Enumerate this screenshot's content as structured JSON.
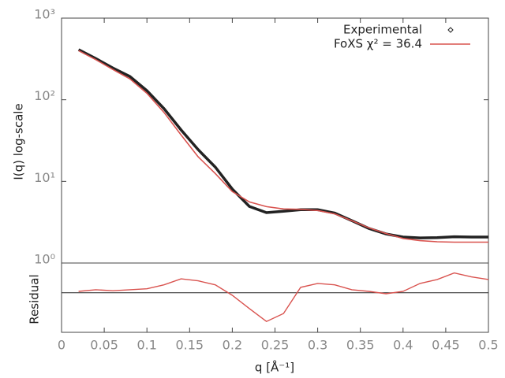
{
  "chart_data": {
    "type": "line",
    "ylabel": "I(q) log-scale",
    "xlabel": "q [Å⁻¹]",
    "log_y": true,
    "x": [
      0.02,
      0.04,
      0.06,
      0.08,
      0.1,
      0.12,
      0.14,
      0.16,
      0.18,
      0.2,
      0.22,
      0.24,
      0.26,
      0.28,
      0.3,
      0.32,
      0.34,
      0.36,
      0.38,
      0.4,
      0.42,
      0.44,
      0.46,
      0.48,
      0.5
    ],
    "series": [
      {
        "name": "Experimental",
        "color": "#222222",
        "mode": "markers",
        "values": [
          410,
          320,
          245,
          193,
          129,
          78,
          42.7,
          24.5,
          15,
          8.05,
          4.94,
          4.14,
          4.3,
          4.5,
          4.5,
          4.1,
          3.3,
          2.65,
          2.27,
          2.08,
          2.03,
          2.05,
          2.1,
          2.08,
          2.08
        ]
      },
      {
        "name": "FoXS χ² = 36.4",
        "color": "#d9534f",
        "mode": "line",
        "values": [
          400,
          310,
          235,
          180,
          120,
          70,
          37,
          20,
          12.5,
          7.5,
          5.6,
          4.9,
          4.6,
          4.55,
          4.4,
          4.0,
          3.3,
          2.7,
          2.3,
          2.0,
          1.88,
          1.82,
          1.8,
          1.8,
          1.8
        ]
      }
    ],
    "xlim": [
      0,
      0.5
    ],
    "xticks": [
      0,
      0.05,
      0.1,
      0.15,
      0.2,
      0.25,
      0.3,
      0.35,
      0.4,
      0.45,
      0.5
    ],
    "ylim": [
      1,
      1000
    ],
    "yticks": [
      {
        "value": 1,
        "label": "10⁰"
      },
      {
        "value": 10,
        "label": "10¹"
      },
      {
        "value": 100,
        "label": "10²"
      },
      {
        "value": 1000,
        "label": "10³"
      }
    ],
    "legend": "top-right",
    "residual": {
      "ylabel": "Residual",
      "color": "#d9534f",
      "ylim": [
        -2,
        1.5
      ],
      "hline": 0,
      "values": [
        0.07,
        0.15,
        0.1,
        0.15,
        0.2,
        0.4,
        0.7,
        0.6,
        0.4,
        -0.13,
        -0.8,
        -1.45,
        -1.05,
        0.27,
        0.47,
        0.4,
        0.15,
        0.07,
        -0.05,
        0.07,
        0.47,
        0.67,
        1.0,
        0.8,
        0.67
      ]
    }
  }
}
